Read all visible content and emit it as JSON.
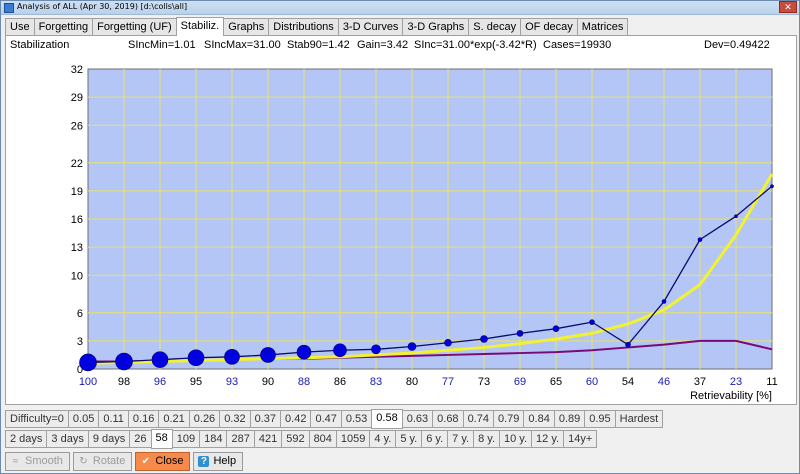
{
  "window": {
    "title": "Analysis of ALL (Apr 30, 2019) [d:\\colls\\all]",
    "close_glyph": "✕"
  },
  "tabs": [
    {
      "label": "Use",
      "active": false
    },
    {
      "label": "Forgetting",
      "active": false
    },
    {
      "label": "Forgetting (UF)",
      "active": false
    },
    {
      "label": "Stabiliz.",
      "active": true
    },
    {
      "label": "Graphs",
      "active": false
    },
    {
      "label": "Distributions",
      "active": false
    },
    {
      "label": "3-D Curves",
      "active": false
    },
    {
      "label": "3-D Graphs",
      "active": false
    },
    {
      "label": "S. decay",
      "active": false
    },
    {
      "label": "OF decay",
      "active": false
    },
    {
      "label": "Matrices",
      "active": false
    }
  ],
  "stats": {
    "name": "Stabilization",
    "sincmin": "SIncMin=1.01",
    "sincmax": "SIncMax=31.00",
    "stab90": "Stab90=1.42",
    "gain": "Gain=3.42",
    "formula": "SInc=31.00*exp(-3.42*R)",
    "cases": "Cases=19930",
    "dev": "Dev=0.49422"
  },
  "chart_data": {
    "type": "line",
    "xlabel": "Retrievability [%]",
    "ylim": [
      0,
      32
    ],
    "yticks": [
      0,
      3,
      6,
      10,
      13,
      16,
      19,
      22,
      26,
      29,
      32
    ],
    "categories": [
      "100",
      "98",
      "96",
      "95",
      "93",
      "90",
      "88",
      "86",
      "83",
      "80",
      "77",
      "73",
      "69",
      "65",
      "60",
      "54",
      "46",
      "37",
      "23",
      "11"
    ],
    "highlighted_categories": [
      "100",
      "96",
      "93",
      "88",
      "83",
      "77",
      "69",
      "60",
      "46",
      "23"
    ],
    "grid": true,
    "colors": {
      "plot_bg": "#b4c6f5",
      "grid": "#e8e070",
      "measured": "#0a0a6e",
      "dots": "#0000e0",
      "approx": "#f2f230",
      "lower": "#7a0a78",
      "highlight_tick": "#1a1ab4"
    },
    "series": [
      {
        "values": [
          0.7,
          0.8,
          1.0,
          1.2,
          1.3,
          1.5,
          1.8,
          2.0,
          2.1,
          2.4,
          2.8,
          3.2,
          3.8,
          4.3,
          5.0,
          2.6,
          7.2,
          13.8,
          16.3,
          19.5
        ],
        "point_size": [
          14,
          14,
          13,
          13,
          12,
          12,
          11,
          10,
          9,
          8,
          7,
          7,
          6,
          6,
          5,
          5,
          4,
          4,
          3,
          3
        ]
      },
      {
        "values": [
          0.6,
          0.7,
          0.8,
          0.9,
          1.0,
          1.1,
          1.2,
          1.3,
          1.5,
          1.7,
          2.0,
          2.3,
          2.7,
          3.2,
          3.8,
          4.8,
          6.3,
          9.0,
          14.3,
          20.8
        ]
      },
      {
        "values": [
          0.8,
          0.8,
          0.9,
          0.9,
          1.0,
          1.1,
          1.1,
          1.2,
          1.3,
          1.4,
          1.5,
          1.6,
          1.7,
          1.8,
          2.0,
          2.3,
          2.6,
          3.0,
          3.0,
          2.1
        ]
      }
    ]
  },
  "difficulty_row": [
    "Difficulty=0",
    "0.05",
    "0.11",
    "0.16",
    "0.21",
    "0.26",
    "0.32",
    "0.37",
    "0.42",
    "0.47",
    "0.53",
    "0.58",
    "0.63",
    "0.68",
    "0.74",
    "0.79",
    "0.84",
    "0.89",
    "0.95",
    "Hardest"
  ],
  "difficulty_selected": "0.58",
  "interval_row": [
    "2 days",
    "3 days",
    "9 days",
    "26",
    "58",
    "109",
    "184",
    "287",
    "421",
    "592",
    "804",
    "1059",
    "4 y.",
    "5 y.",
    "6 y.",
    "7 y.",
    "8 y.",
    "10 y.",
    "12 y.",
    "14y+"
  ],
  "interval_selected": "58",
  "buttons": {
    "smooth": {
      "label": "Smooth",
      "icon": "smooth-icon"
    },
    "rotate": {
      "label": "Rotate",
      "icon": "rotate-icon"
    },
    "close": {
      "label": "Close",
      "icon": "checkmark-icon"
    },
    "help": {
      "label": "Help",
      "icon": "question-icon"
    }
  }
}
